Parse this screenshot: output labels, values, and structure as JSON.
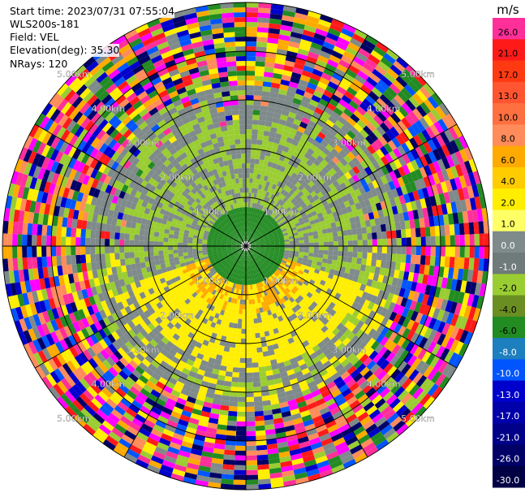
{
  "info": {
    "start_time": "Start time: 2023/07/31 07:55:04",
    "instrument": "WLS200s-181",
    "field": "Field: VEL",
    "elevation": "Elevation(deg): 35.30",
    "nrays": "NRays: 120"
  },
  "chart_data": {
    "type": "heatmap",
    "projection": "polar PPI",
    "field": "VEL",
    "units": "m/s",
    "nrays": 120,
    "range_rings_km": [
      1.0,
      2.0,
      3.0,
      4.0,
      5.0
    ],
    "range_ring_labels": [
      "1.00km",
      "2.00km",
      "3.00km",
      "4.00km",
      "5.00km"
    ],
    "spokes_deg": [
      0,
      30,
      60,
      90,
      120,
      150,
      180,
      210,
      240,
      270,
      300,
      330
    ],
    "colorbar": {
      "title": "m/s",
      "tick_labels": [
        "26.0",
        "21.0",
        "17.0",
        "13.0",
        "10.0",
        "8.0",
        "6.0",
        "4.0",
        "2.0",
        "1.0",
        "0.0",
        "-1.0",
        "-2.0",
        "-4.0",
        "-6.0",
        "-8.0",
        "-10.0",
        "-13.0",
        "-17.0",
        "-21.0",
        "-26.0",
        "-30.0"
      ],
      "colors": [
        "#ff2f9a",
        "#ff1a1a",
        "#ff3a12",
        "#ff5530",
        "#ff7040",
        "#ff8c5a",
        "#ffaa00",
        "#ffcc00",
        "#ffee00",
        "#ffff66",
        "#7f8a8a",
        "#6f7a7a",
        "#9acd32",
        "#6b8e23",
        "#228b22",
        "#1e7fbf",
        "#0055ff",
        "#0000cc",
        "#0000aa",
        "#000088",
        "#000066",
        "#000044"
      ]
    },
    "texture_colors": [
      "#ff2f9a",
      "#ff1a1a",
      "#ffee00",
      "#0000cc",
      "#228b22",
      "#ff8c5a",
      "#000066",
      "#9acd32",
      "#ff00ff",
      "#7f8a8a",
      "#0055ff",
      "#ffaa00"
    ]
  }
}
